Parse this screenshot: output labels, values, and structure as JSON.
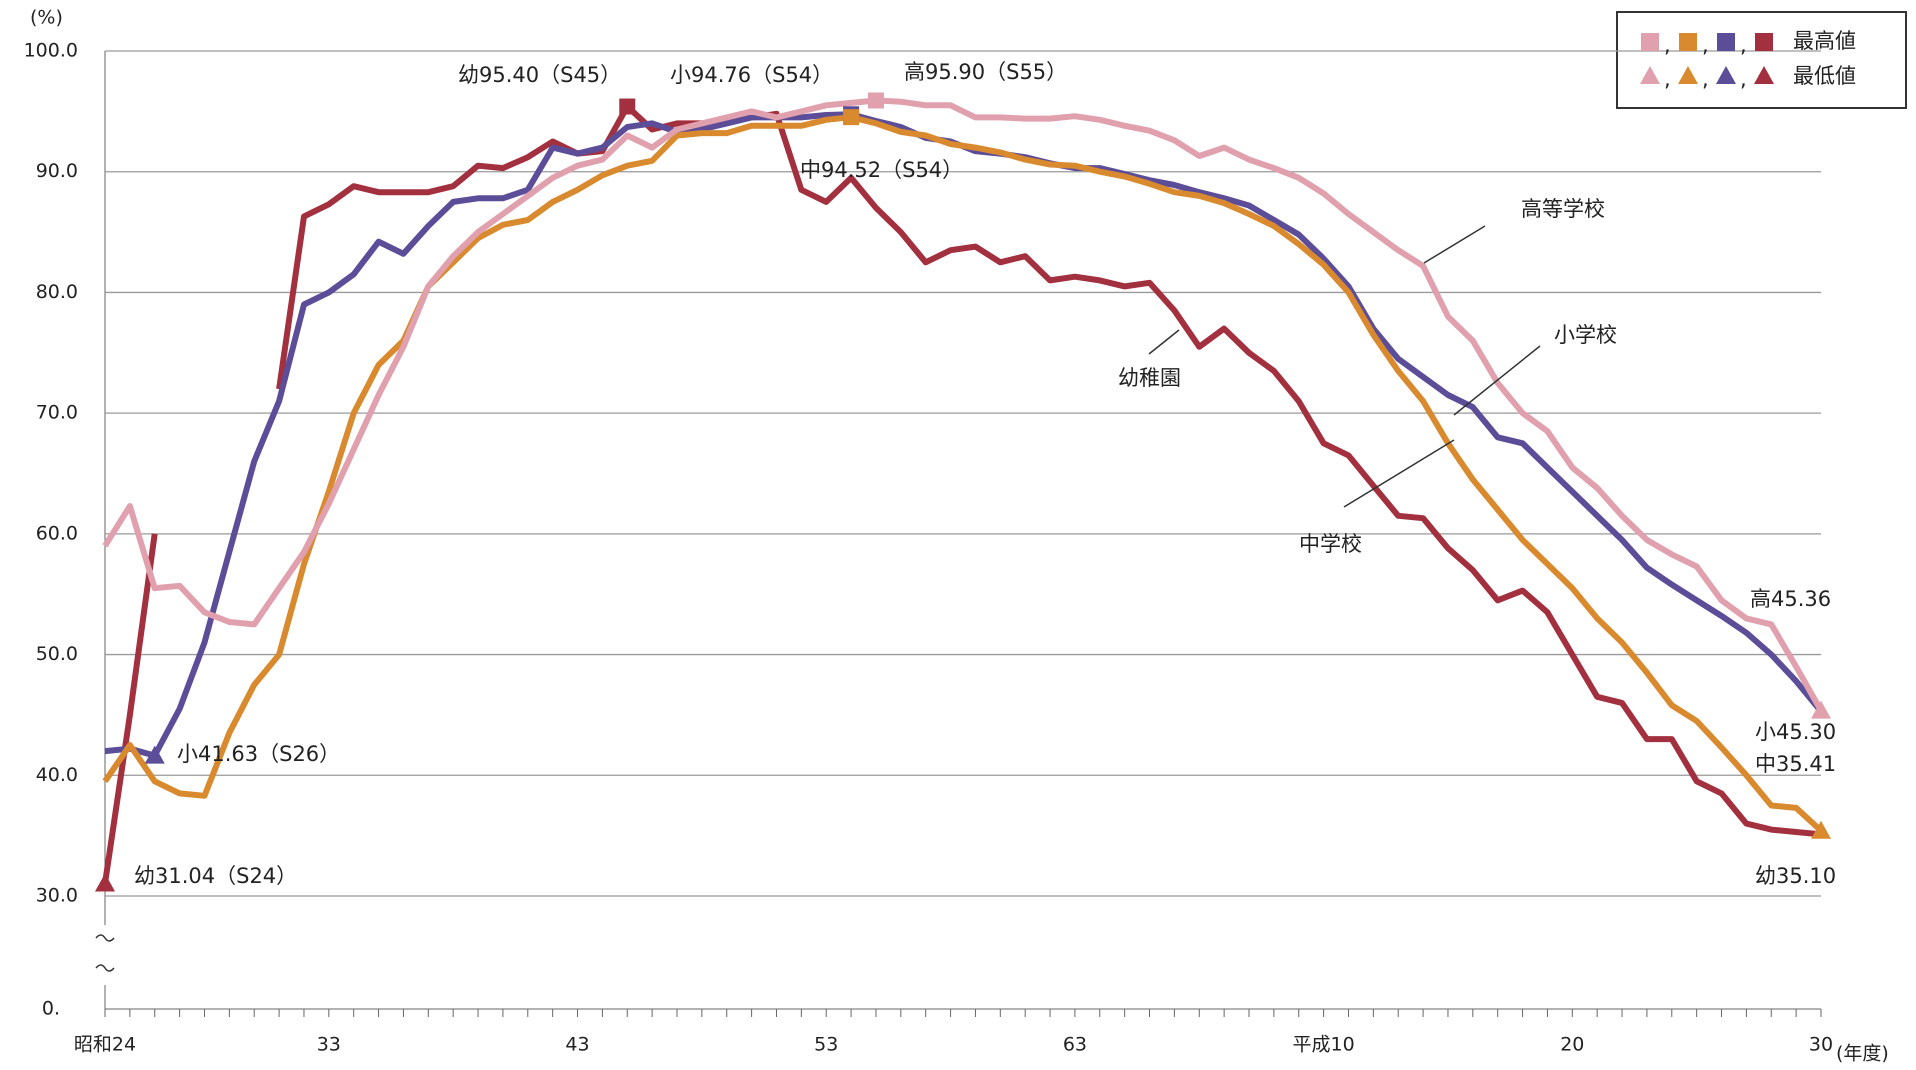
{
  "chart_data": {
    "type": "line",
    "y_unit_label": "(%)",
    "x_unit_label": "(年度)",
    "ybreak_label": "0.",
    "ylim": [
      30,
      100
    ],
    "yticks": [
      {
        "value": 30,
        "label": "30.0"
      },
      {
        "value": 40,
        "label": "40.0"
      },
      {
        "value": 50,
        "label": "50.0"
      },
      {
        "value": 60,
        "label": "60.0"
      },
      {
        "value": 70,
        "label": "70.0"
      },
      {
        "value": 80,
        "label": "80.0"
      },
      {
        "value": 90,
        "label": "90.0"
      },
      {
        "value": 100,
        "label": "100.0"
      }
    ],
    "grid": true,
    "categories": [
      "昭和24",
      null,
      null,
      null,
      null,
      null,
      null,
      null,
      null,
      "33",
      null,
      null,
      null,
      null,
      null,
      null,
      null,
      null,
      null,
      "43",
      null,
      null,
      null,
      null,
      null,
      null,
      null,
      null,
      null,
      "53",
      null,
      null,
      null,
      null,
      null,
      null,
      null,
      null,
      null,
      "63",
      null,
      null,
      null,
      null,
      null,
      null,
      null,
      null,
      null,
      "平成10",
      null,
      null,
      null,
      null,
      null,
      null,
      null,
      null,
      null,
      "20",
      null,
      null,
      null,
      null,
      null,
      null,
      null,
      null,
      null,
      "30"
    ],
    "series": [
      {
        "name": "幼稚園",
        "color": "#a3303e",
        "max_at": 21,
        "min_at": 0,
        "values": [
          31.04,
          45,
          60,
          null,
          null,
          null,
          null,
          72,
          86.3,
          87.3,
          88.8,
          88.3,
          88.3,
          88.3,
          88.8,
          90.5,
          90.3,
          91.2,
          92.5,
          91.5,
          91.7,
          95.4,
          93.5,
          94,
          94,
          94.3,
          94.5,
          94.8,
          88.5,
          87.5,
          89.5,
          87,
          85,
          82.5,
          83.5,
          83.8,
          82.5,
          83,
          81,
          81.3,
          81,
          80.5,
          80.8,
          78.5,
          75.5,
          77,
          75,
          73.5,
          71,
          67.5,
          66.5,
          64,
          61.5,
          61.3,
          58.8,
          57,
          54.5,
          55.3,
          53.5,
          50,
          46.5,
          46,
          43,
          43,
          39.5,
          38.5,
          36,
          35.5,
          35.3,
          35.1
        ]
      },
      {
        "name": "小学校",
        "color": "#5c4d99",
        "max_at": 30,
        "min_at": 2,
        "values": [
          42,
          42.2,
          41.63,
          45.5,
          51,
          58.5,
          66,
          71,
          79,
          80,
          81.5,
          84.2,
          83.2,
          85.5,
          87.5,
          87.8,
          87.8,
          88.5,
          92,
          91.5,
          92,
          93.7,
          94,
          93.3,
          93.5,
          94,
          94.5,
          94.5,
          94.5,
          94.7,
          94.76,
          94.2,
          93.7,
          92.8,
          92.5,
          91.7,
          91.5,
          91.2,
          90.7,
          90.3,
          90.3,
          89.8,
          89.3,
          88.9,
          88.3,
          87.8,
          87.2,
          86,
          84.8,
          82.8,
          80.5,
          77,
          74.5,
          73,
          71.5,
          70.5,
          68,
          67.5,
          65.5,
          63.5,
          61.5,
          59.5,
          57.2,
          55.8,
          54.5,
          53.2,
          51.8,
          50,
          47.8,
          45.3
        ]
      },
      {
        "name": "中学校",
        "color": "#d98a2e",
        "max_at": 30,
        "min_at": 69,
        "values": [
          39.5,
          42.5,
          39.5,
          38.5,
          38.3,
          43.5,
          47.5,
          50,
          57.5,
          63.5,
          70,
          74,
          76,
          80.5,
          82.5,
          84.5,
          85.6,
          86,
          87.5,
          88.5,
          89.7,
          90.5,
          90.9,
          93,
          93.2,
          93.2,
          93.8,
          93.8,
          93.8,
          94.3,
          94.52,
          94,
          93.3,
          93,
          92.3,
          92,
          91.6,
          91,
          90.6,
          90.5,
          90,
          89.6,
          89,
          88.3,
          88,
          87.4,
          86.5,
          85.5,
          84,
          82.3,
          80,
          76.5,
          73.5,
          71,
          67.5,
          64.5,
          62,
          59.5,
          57.5,
          55.5,
          53,
          51,
          48.5,
          45.8,
          44.5,
          42.3,
          40,
          37.5,
          37.3,
          35.41
        ]
      },
      {
        "name": "高等学校",
        "color": "#e0a0ae",
        "max_at": 31,
        "min_at": 69,
        "values": [
          59,
          62.3,
          55.5,
          55.7,
          53.5,
          52.7,
          52.5,
          55.5,
          58.5,
          62.5,
          67,
          71.5,
          75.5,
          80.5,
          83,
          85,
          86.5,
          88,
          89.5,
          90.5,
          91,
          93,
          92,
          93.5,
          94,
          94.5,
          95,
          94.5,
          95,
          95.5,
          95.7,
          95.9,
          95.8,
          95.5,
          95.5,
          94.5,
          94.5,
          94.4,
          94.4,
          94.6,
          94.3,
          93.8,
          93.4,
          92.6,
          91.3,
          92,
          91,
          90.3,
          89.5,
          88.2,
          86.5,
          85,
          83.5,
          82.2,
          78,
          76,
          72.5,
          70,
          68.5,
          65.5,
          63.8,
          61.5,
          59.5,
          58.3,
          57.3,
          54.5,
          53,
          52.5,
          49,
          45.36
        ]
      }
    ],
    "annotations": [
      "幼95.40（S45）",
      "小94.76（S54）",
      "高95.90（S55）",
      "中94.52（S54）",
      "小41.63（S26）",
      "幼31.04（S24）",
      "高45.36",
      "小45.30",
      "中35.41",
      "幼35.10"
    ],
    "legend": {
      "separator": ",",
      "max_label": "最高値",
      "min_label": "最低値"
    }
  }
}
